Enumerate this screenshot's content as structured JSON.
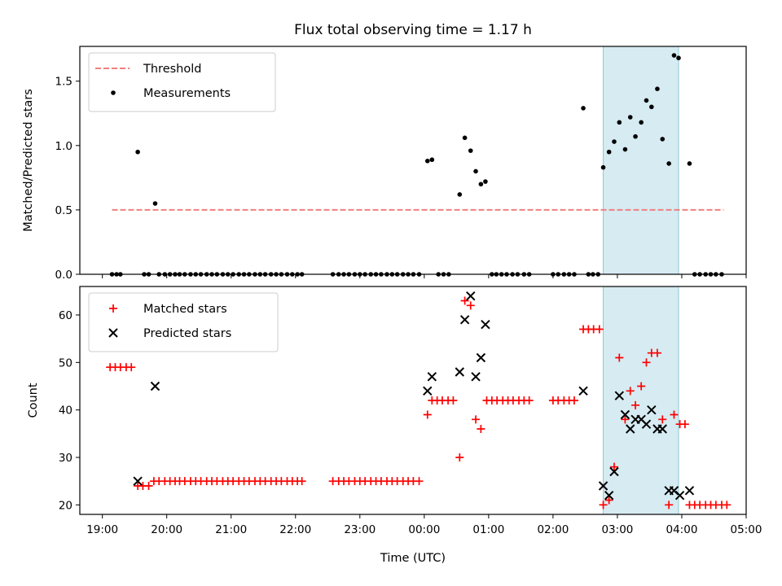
{
  "chart_data": [
    {
      "type": "scatter",
      "title": "Flux total observing time = 1.17 h",
      "xlabel": "",
      "ylabel": "Matched/Predicted stars",
      "xlim": [
        18.65,
        29.0
      ],
      "ylim": [
        0,
        1.77
      ],
      "yticks": [
        0.0,
        0.5,
        1.0,
        1.5
      ],
      "yticklabels": [
        "0.0",
        "0.5",
        "1.0",
        "1.5"
      ],
      "highlight_span": [
        26.78,
        27.95
      ],
      "threshold": {
        "name": "Threshold",
        "value": 0.5,
        "x": [
          19.15,
          28.65
        ],
        "color": "#f08080"
      },
      "legend_position": "upper-left",
      "series": [
        {
          "name": "Measurements",
          "marker": "dot",
          "color": "#000000",
          "points": [
            [
              19.15,
              0
            ],
            [
              19.22,
              0
            ],
            [
              19.28,
              0
            ],
            [
              19.55,
              0.95
            ],
            [
              19.65,
              0
            ],
            [
              19.72,
              0
            ],
            [
              19.82,
              0.55
            ],
            [
              19.88,
              0
            ],
            [
              19.97,
              0
            ],
            [
              20.05,
              0
            ],
            [
              20.13,
              0
            ],
            [
              20.2,
              0
            ],
            [
              20.28,
              0
            ],
            [
              20.37,
              0
            ],
            [
              20.45,
              0
            ],
            [
              20.53,
              0
            ],
            [
              20.62,
              0
            ],
            [
              20.7,
              0
            ],
            [
              20.78,
              0
            ],
            [
              20.87,
              0
            ],
            [
              20.95,
              0
            ],
            [
              21.03,
              0
            ],
            [
              21.12,
              0
            ],
            [
              21.2,
              0
            ],
            [
              21.28,
              0
            ],
            [
              21.37,
              0
            ],
            [
              21.45,
              0
            ],
            [
              21.53,
              0
            ],
            [
              21.62,
              0
            ],
            [
              21.7,
              0
            ],
            [
              21.78,
              0
            ],
            [
              21.87,
              0
            ],
            [
              21.95,
              0
            ],
            [
              22.03,
              0
            ],
            [
              22.1,
              0
            ],
            [
              22.58,
              0
            ],
            [
              22.67,
              0
            ],
            [
              22.75,
              0
            ],
            [
              22.83,
              0
            ],
            [
              22.92,
              0
            ],
            [
              23.0,
              0
            ],
            [
              23.08,
              0
            ],
            [
              23.17,
              0
            ],
            [
              23.25,
              0
            ],
            [
              23.33,
              0
            ],
            [
              23.42,
              0
            ],
            [
              23.5,
              0
            ],
            [
              23.58,
              0
            ],
            [
              23.67,
              0
            ],
            [
              23.75,
              0
            ],
            [
              23.83,
              0
            ],
            [
              23.92,
              0
            ],
            [
              24.05,
              0.88
            ],
            [
              24.12,
              0.89
            ],
            [
              24.22,
              0
            ],
            [
              24.3,
              0
            ],
            [
              24.38,
              0
            ],
            [
              24.55,
              0.62
            ],
            [
              24.63,
              1.06
            ],
            [
              24.72,
              0.96
            ],
            [
              24.8,
              0.8
            ],
            [
              24.88,
              0.7
            ],
            [
              24.95,
              0.72
            ],
            [
              25.05,
              0
            ],
            [
              25.12,
              0
            ],
            [
              25.2,
              0
            ],
            [
              25.28,
              0
            ],
            [
              25.37,
              0
            ],
            [
              25.45,
              0
            ],
            [
              25.55,
              0
            ],
            [
              25.63,
              0
            ],
            [
              26.0,
              0
            ],
            [
              26.08,
              0
            ],
            [
              26.17,
              0
            ],
            [
              26.25,
              0
            ],
            [
              26.33,
              0
            ],
            [
              26.47,
              1.29
            ],
            [
              26.55,
              0
            ],
            [
              26.62,
              0
            ],
            [
              26.7,
              0
            ],
            [
              26.78,
              0.83
            ],
            [
              26.87,
              0.95
            ],
            [
              26.95,
              1.03
            ],
            [
              27.03,
              1.18
            ],
            [
              27.12,
              0.97
            ],
            [
              27.2,
              1.22
            ],
            [
              27.28,
              1.07
            ],
            [
              27.37,
              1.18
            ],
            [
              27.45,
              1.35
            ],
            [
              27.53,
              1.3
            ],
            [
              27.62,
              1.44
            ],
            [
              27.7,
              1.05
            ],
            [
              27.8,
              0.86
            ],
            [
              27.88,
              1.7
            ],
            [
              27.95,
              1.68
            ],
            [
              28.12,
              0.86
            ],
            [
              28.2,
              0
            ],
            [
              28.28,
              0
            ],
            [
              28.37,
              0
            ],
            [
              28.45,
              0
            ],
            [
              28.53,
              0
            ],
            [
              28.62,
              0
            ]
          ]
        }
      ]
    },
    {
      "type": "scatter",
      "title": "",
      "xlabel": "Time (UTC)",
      "ylabel": "Count",
      "xlim": [
        18.65,
        29.0
      ],
      "ylim": [
        18,
        66
      ],
      "yticks": [
        20,
        30,
        40,
        50,
        60
      ],
      "yticklabels": [
        "20",
        "30",
        "40",
        "50",
        "60"
      ],
      "xticks": [
        19,
        20,
        21,
        22,
        23,
        24,
        25,
        26,
        27,
        28,
        29
      ],
      "xticklabels": [
        "19:00",
        "20:00",
        "21:00",
        "22:00",
        "23:00",
        "00:00",
        "01:00",
        "02:00",
        "03:00",
        "04:00",
        "05:00"
      ],
      "highlight_span": [
        26.78,
        27.95
      ],
      "legend_position": "upper-left",
      "series": [
        {
          "name": "Matched stars",
          "marker": "plus",
          "color": "#ff0000",
          "points": [
            [
              19.12,
              49
            ],
            [
              19.2,
              49
            ],
            [
              19.28,
              49
            ],
            [
              19.37,
              49
            ],
            [
              19.45,
              49
            ],
            [
              19.55,
              24
            ],
            [
              19.63,
              24
            ],
            [
              19.72,
              24
            ],
            [
              19.8,
              25
            ],
            [
              19.88,
              25
            ],
            [
              19.97,
              25
            ],
            [
              20.05,
              25
            ],
            [
              20.13,
              25
            ],
            [
              20.2,
              25
            ],
            [
              20.28,
              25
            ],
            [
              20.37,
              25
            ],
            [
              20.45,
              25
            ],
            [
              20.53,
              25
            ],
            [
              20.62,
              25
            ],
            [
              20.7,
              25
            ],
            [
              20.78,
              25
            ],
            [
              20.87,
              25
            ],
            [
              20.95,
              25
            ],
            [
              21.03,
              25
            ],
            [
              21.12,
              25
            ],
            [
              21.2,
              25
            ],
            [
              21.28,
              25
            ],
            [
              21.37,
              25
            ],
            [
              21.45,
              25
            ],
            [
              21.53,
              25
            ],
            [
              21.62,
              25
            ],
            [
              21.7,
              25
            ],
            [
              21.78,
              25
            ],
            [
              21.87,
              25
            ],
            [
              21.95,
              25
            ],
            [
              22.03,
              25
            ],
            [
              22.1,
              25
            ],
            [
              22.58,
              25
            ],
            [
              22.67,
              25
            ],
            [
              22.75,
              25
            ],
            [
              22.83,
              25
            ],
            [
              22.92,
              25
            ],
            [
              23.0,
              25
            ],
            [
              23.08,
              25
            ],
            [
              23.17,
              25
            ],
            [
              23.25,
              25
            ],
            [
              23.33,
              25
            ],
            [
              23.42,
              25
            ],
            [
              23.5,
              25
            ],
            [
              23.58,
              25
            ],
            [
              23.67,
              25
            ],
            [
              23.75,
              25
            ],
            [
              23.83,
              25
            ],
            [
              23.92,
              25
            ],
            [
              24.05,
              39
            ],
            [
              24.12,
              42
            ],
            [
              24.2,
              42
            ],
            [
              24.28,
              42
            ],
            [
              24.37,
              42
            ],
            [
              24.45,
              42
            ],
            [
              24.55,
              30
            ],
            [
              24.63,
              63
            ],
            [
              24.72,
              62
            ],
            [
              24.8,
              38
            ],
            [
              24.88,
              36
            ],
            [
              24.97,
              42
            ],
            [
              25.05,
              42
            ],
            [
              25.13,
              42
            ],
            [
              25.22,
              42
            ],
            [
              25.3,
              42
            ],
            [
              25.38,
              42
            ],
            [
              25.47,
              42
            ],
            [
              25.55,
              42
            ],
            [
              25.63,
              42
            ],
            [
              26.0,
              42
            ],
            [
              26.08,
              42
            ],
            [
              26.17,
              42
            ],
            [
              26.25,
              42
            ],
            [
              26.33,
              42
            ],
            [
              26.47,
              57
            ],
            [
              26.55,
              57
            ],
            [
              26.63,
              57
            ],
            [
              26.72,
              57
            ],
            [
              26.78,
              20
            ],
            [
              26.87,
              21
            ],
            [
              26.95,
              28
            ],
            [
              27.03,
              51
            ],
            [
              27.12,
              38
            ],
            [
              27.2,
              44
            ],
            [
              27.28,
              41
            ],
            [
              27.37,
              45
            ],
            [
              27.45,
              50
            ],
            [
              27.53,
              52
            ],
            [
              27.62,
              52
            ],
            [
              27.7,
              38
            ],
            [
              27.8,
              20
            ],
            [
              27.88,
              39
            ],
            [
              27.97,
              37
            ],
            [
              28.05,
              37
            ],
            [
              28.12,
              20
            ],
            [
              28.2,
              20
            ],
            [
              28.28,
              20
            ],
            [
              28.37,
              20
            ],
            [
              28.45,
              20
            ],
            [
              28.53,
              20
            ],
            [
              28.62,
              20
            ],
            [
              28.7,
              20
            ]
          ]
        },
        {
          "name": "Predicted stars",
          "marker": "x",
          "color": "#000000",
          "points": [
            [
              19.55,
              25
            ],
            [
              19.82,
              45
            ],
            [
              24.05,
              44
            ],
            [
              24.12,
              47
            ],
            [
              24.55,
              48
            ],
            [
              24.63,
              59
            ],
            [
              24.72,
              64
            ],
            [
              24.8,
              47
            ],
            [
              24.88,
              51
            ],
            [
              24.95,
              58
            ],
            [
              26.47,
              44
            ],
            [
              26.78,
              24
            ],
            [
              26.87,
              22
            ],
            [
              26.95,
              27
            ],
            [
              27.03,
              43
            ],
            [
              27.12,
              39
            ],
            [
              27.2,
              36
            ],
            [
              27.28,
              38
            ],
            [
              27.37,
              38
            ],
            [
              27.45,
              37
            ],
            [
              27.53,
              40
            ],
            [
              27.62,
              36
            ],
            [
              27.7,
              36
            ],
            [
              27.8,
              23
            ],
            [
              27.88,
              23
            ],
            [
              27.97,
              22
            ],
            [
              28.12,
              23
            ]
          ]
        }
      ]
    }
  ]
}
